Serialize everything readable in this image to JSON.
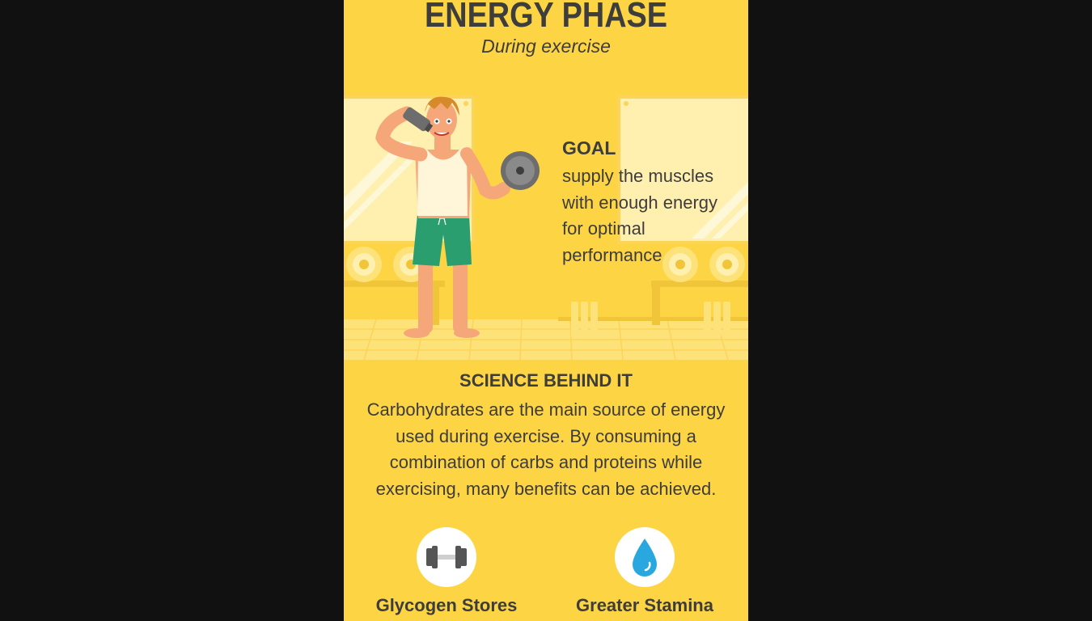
{
  "header": {
    "title": "ENERGY PHASE",
    "subtitle": "During exercise"
  },
  "goal": {
    "heading": "GOAL",
    "text": "supply the muscles with enough energy for optimal performance"
  },
  "science": {
    "heading": "SCIENCE BEHIND IT",
    "text": "Carbohydrates are the main source of energy used during exercise.  By consuming a combination of carbs and proteins while exercising, many benefits can be achieved."
  },
  "benefits": [
    {
      "label": "Glycogen Stores Preserved",
      "icon": "dumbbell-icon"
    },
    {
      "label": "Greater Stamina",
      "icon": "water-drop-icon"
    }
  ],
  "colors": {
    "page_background": "#111111",
    "panel": "#fdd444",
    "text": "#3d3d3d",
    "shorts": "#2a9e6e",
    "drop": "#29a8e0"
  }
}
